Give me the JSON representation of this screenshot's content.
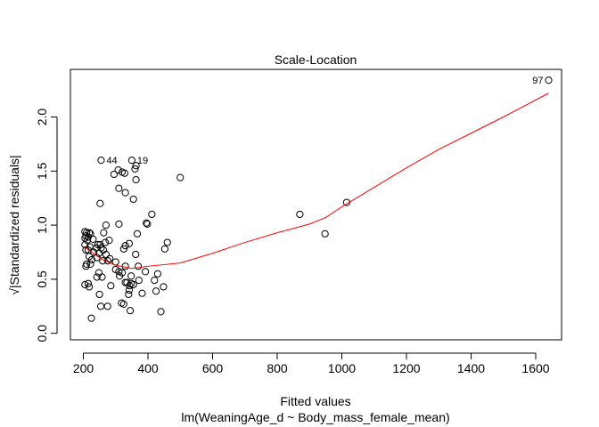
{
  "chart_data": {
    "type": "scatter",
    "title": "Scale-Location",
    "xlabel": "Fitted values",
    "subtitle": "lm(WeaningAge_d ~ Body_mass_female_mean)",
    "ylabel": "√|Standardized residuals|",
    "xlim": [
      160,
      1680
    ],
    "ylim": [
      -0.06,
      2.44
    ],
    "xticks": [
      {
        "v": 200,
        "label": "200"
      },
      {
        "v": 400,
        "label": "400"
      },
      {
        "v": 600,
        "label": "600"
      },
      {
        "v": 800,
        "label": "800"
      },
      {
        "v": 1000,
        "label": "1000"
      },
      {
        "v": 1200,
        "label": "1200"
      },
      {
        "v": 1400,
        "label": "1400"
      },
      {
        "v": 1600,
        "label": "1600"
      }
    ],
    "yticks": [
      {
        "v": 0,
        "label": "0.0"
      },
      {
        "v": 0.5,
        "label": "0.5"
      },
      {
        "v": 1.0,
        "label": "1.0"
      },
      {
        "v": 1.5,
        "label": "1.5"
      },
      {
        "v": 2.0,
        "label": "2.0"
      }
    ],
    "points": [
      [
        1640,
        2.34
      ],
      [
        255,
        1.6
      ],
      [
        350,
        1.6
      ],
      [
        363,
        1.55
      ],
      [
        360,
        1.52
      ],
      [
        308,
        1.51
      ],
      [
        320,
        1.49
      ],
      [
        328,
        1.48
      ],
      [
        295,
        1.47
      ],
      [
        500,
        1.44
      ],
      [
        363,
        1.42
      ],
      [
        310,
        1.34
      ],
      [
        330,
        1.3
      ],
      [
        355,
        1.24
      ],
      [
        252,
        1.2
      ],
      [
        1015,
        1.21
      ],
      [
        870,
        1.1
      ],
      [
        412,
        1.1
      ],
      [
        395,
        1.02
      ],
      [
        398,
        1.01
      ],
      [
        270,
        1.0
      ],
      [
        310,
        1.01
      ],
      [
        948,
        0.92
      ],
      [
        205,
        0.94
      ],
      [
        210,
        0.93
      ],
      [
        218,
        0.93
      ],
      [
        222,
        0.92
      ],
      [
        263,
        0.93
      ],
      [
        367,
        0.92
      ],
      [
        208,
        0.9
      ],
      [
        215,
        0.89
      ],
      [
        205,
        0.88
      ],
      [
        230,
        0.87
      ],
      [
        212,
        0.86
      ],
      [
        280,
        0.86
      ],
      [
        268,
        0.84
      ],
      [
        460,
        0.84
      ],
      [
        342,
        0.83
      ],
      [
        245,
        0.82
      ],
      [
        252,
        0.82
      ],
      [
        330,
        0.81
      ],
      [
        205,
        0.82
      ],
      [
        220,
        0.8
      ],
      [
        240,
        0.79
      ],
      [
        255,
        0.79
      ],
      [
        262,
        0.77
      ],
      [
        208,
        0.77
      ],
      [
        215,
        0.77
      ],
      [
        452,
        0.78
      ],
      [
        325,
        0.78
      ],
      [
        232,
        0.75
      ],
      [
        248,
        0.74
      ],
      [
        270,
        0.73
      ],
      [
        362,
        0.73
      ],
      [
        218,
        0.71
      ],
      [
        242,
        0.7
      ],
      [
        282,
        0.69
      ],
      [
        226,
        0.68
      ],
      [
        260,
        0.67
      ],
      [
        276,
        0.67
      ],
      [
        300,
        0.66
      ],
      [
        210,
        0.64
      ],
      [
        222,
        0.64
      ],
      [
        370,
        0.62
      ],
      [
        208,
        0.62
      ],
      [
        330,
        0.62
      ],
      [
        300,
        0.59
      ],
      [
        248,
        0.56
      ],
      [
        310,
        0.57
      ],
      [
        320,
        0.56
      ],
      [
        392,
        0.57
      ],
      [
        430,
        0.55
      ],
      [
        348,
        0.53
      ],
      [
        242,
        0.52
      ],
      [
        258,
        0.52
      ],
      [
        312,
        0.53
      ],
      [
        420,
        0.49
      ],
      [
        372,
        0.49
      ],
      [
        330,
        0.47
      ],
      [
        335,
        0.47
      ],
      [
        348,
        0.46
      ],
      [
        355,
        0.45
      ],
      [
        205,
        0.45
      ],
      [
        215,
        0.46
      ],
      [
        285,
        0.44
      ],
      [
        343,
        0.44
      ],
      [
        448,
        0.43
      ],
      [
        218,
        0.43
      ],
      [
        342,
        0.4
      ],
      [
        425,
        0.39
      ],
      [
        382,
        0.37
      ],
      [
        340,
        0.36
      ],
      [
        250,
        0.36
      ],
      [
        318,
        0.28
      ],
      [
        325,
        0.27
      ],
      [
        254,
        0.25
      ],
      [
        275,
        0.25
      ],
      [
        345,
        0.21
      ],
      [
        440,
        0.2
      ],
      [
        225,
        0.14
      ]
    ],
    "labels": [
      {
        "text": "97",
        "x": 1640,
        "y": 2.34
      },
      {
        "text": "44",
        "x": 255,
        "y": 1.6
      },
      {
        "text": "19",
        "x": 350,
        "y": 1.6
      }
    ],
    "smooth": [
      [
        205,
        0.8
      ],
      [
        230,
        0.74
      ],
      [
        260,
        0.68
      ],
      [
        300,
        0.63
      ],
      [
        350,
        0.6
      ],
      [
        400,
        0.62
      ],
      [
        500,
        0.65
      ],
      [
        600,
        0.74
      ],
      [
        700,
        0.84
      ],
      [
        800,
        0.93
      ],
      [
        900,
        1.01
      ],
      [
        950,
        1.07
      ],
      [
        1000,
        1.17
      ],
      [
        1100,
        1.35
      ],
      [
        1200,
        1.53
      ],
      [
        1300,
        1.7
      ],
      [
        1400,
        1.85
      ],
      [
        1500,
        2.0
      ],
      [
        1640,
        2.22
      ]
    ],
    "colors": {
      "points": "#000000",
      "smooth": "#ff0000",
      "axis": "#000000"
    }
  }
}
